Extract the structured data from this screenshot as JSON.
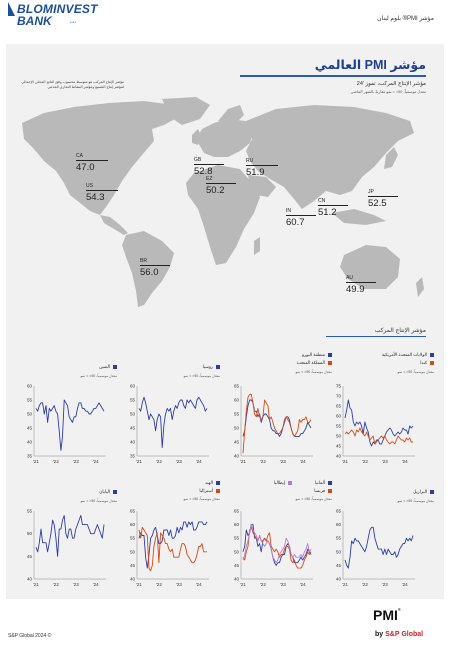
{
  "header": {
    "logo_line1": "BLOMINVEST",
    "logo_line2": "BANK",
    "logo_sal": "s.a.l.",
    "page_title": "مؤشر PMI® بلوم لبنان"
  },
  "report": {
    "title": "مؤشر PMI العالمي",
    "subtitle": "مؤشر الإنتاج المركب، تموز '24",
    "subtitle2": "معدل موسمياً، 50< = نمو مقارنةً بالشهر الماضي",
    "description": "مؤشر الإنتاج المركب هو متوسط محسوب وفق الناتج المحلي الإجمالي لمؤشر إنتاج التصنيع ومؤشر النشاط التجاري الخدمي"
  },
  "map": {
    "land_color": "#b9b9b9",
    "labels": [
      {
        "code": "CA",
        "value": "47.0"
      },
      {
        "code": "US",
        "value": "54.3"
      },
      {
        "code": "GB",
        "value": "52.8"
      },
      {
        "code": "EZ",
        "value": "50.2"
      },
      {
        "code": "RU",
        "value": "51.9"
      },
      {
        "code": "IN",
        "value": "60.7"
      },
      {
        "code": "CN",
        "value": "51.2"
      },
      {
        "code": "JP",
        "value": "52.5"
      },
      {
        "code": "BR",
        "value": "56.0"
      },
      {
        "code": "AU",
        "value": "49.9"
      }
    ]
  },
  "section_title": "مؤشر الإنتاج المركب",
  "unit_label": "معدل موسمياً، 50< = نمو",
  "colors": {
    "blue": "#2b3ea8",
    "orange": "#d94a12",
    "purple": "#b57ad6"
  },
  "chart_data": [
    {
      "type": "line",
      "ylim": [
        40,
        75
      ],
      "yticks": [
        "40",
        "45",
        "50",
        "55",
        "60",
        "65",
        "70",
        "75"
      ],
      "xticks": [
        "'21",
        "'22",
        "'23",
        "'24"
      ],
      "series": [
        {
          "name": "الولايات المتحدة الأمريكية",
          "color": "#2b3ea8",
          "values": [
            59,
            63,
            68,
            64,
            63,
            57,
            55,
            57,
            56,
            57,
            55,
            51,
            57,
            54,
            52,
            47,
            45,
            47,
            46,
            48,
            48,
            46,
            46,
            48,
            50,
            52,
            53,
            54,
            53,
            51,
            50,
            51,
            52,
            51,
            52,
            54,
            53,
            53,
            51,
            55,
            54,
            55
          ]
        },
        {
          "name": "كندا",
          "color": "#d94a12",
          "values": [
            51,
            52,
            51,
            52,
            53,
            52,
            50,
            53,
            52,
            54,
            52,
            51,
            50,
            52,
            50,
            48,
            49,
            50,
            46,
            47,
            48,
            49,
            50,
            49,
            50,
            48,
            47,
            46,
            47,
            47,
            46,
            48,
            50,
            49,
            48,
            48,
            47,
            49,
            48,
            49,
            47,
            47
          ]
        }
      ]
    },
    {
      "type": "line",
      "ylim": [
        40,
        65
      ],
      "yticks": [
        "40",
        "45",
        "50",
        "55",
        "60",
        "65"
      ],
      "xticks": [
        "'21",
        "'22",
        "'23",
        "'24"
      ],
      "series": [
        {
          "name": "منطقة اليورو",
          "color": "#2b3ea8",
          "values": [
            47,
            49,
            54,
            58,
            60,
            60,
            59,
            56,
            56,
            54,
            55,
            52,
            54,
            55,
            55,
            54,
            53,
            50,
            49,
            49,
            48,
            48,
            47,
            48,
            50,
            52,
            54,
            54,
            53,
            50,
            48,
            47,
            47,
            47,
            47,
            48,
            48,
            49,
            50,
            52,
            51,
            50
          ]
        },
        {
          "name": "المملكة المتحدة",
          "color": "#d94a12",
          "values": [
            41,
            49,
            56,
            61,
            62,
            62,
            59,
            55,
            54,
            57,
            54,
            53,
            54,
            60,
            59,
            58,
            53,
            54,
            52,
            50,
            49,
            48,
            48,
            49,
            50,
            53,
            54,
            53,
            52,
            50,
            48,
            47,
            48,
            49,
            53,
            52,
            53,
            53,
            54,
            52,
            52,
            53
          ]
        }
      ]
    },
    {
      "type": "line",
      "ylim": [
        35,
        60
      ],
      "yticks": [
        "35",
        "40",
        "45",
        "50",
        "55",
        "60"
      ],
      "xticks": [
        "'21",
        "'22",
        "'23",
        "'24"
      ],
      "series": [
        {
          "name": "روسيا",
          "color": "#2b3ea8",
          "values": [
            52,
            51,
            54,
            56,
            54,
            51,
            48,
            50,
            49,
            48,
            44,
            48,
            50,
            49,
            38,
            46,
            50,
            52,
            51,
            52,
            48,
            51,
            53,
            52,
            54,
            55,
            55,
            53,
            52,
            55,
            54,
            55,
            54,
            53,
            52,
            55,
            56,
            55,
            54,
            53,
            51,
            52
          ]
        }
      ]
    },
    {
      "type": "line",
      "ylim": [
        35,
        60
      ],
      "yticks": [
        "35",
        "40",
        "45",
        "50",
        "55",
        "60"
      ],
      "xticks": [
        "'21",
        "'22",
        "'23",
        "'24"
      ],
      "series": [
        {
          "name": "الصين",
          "color": "#2b3ea8",
          "values": [
            52,
            51,
            53,
            54,
            54,
            50,
            53,
            47,
            52,
            51,
            52,
            53,
            51,
            50,
            44,
            37,
            42,
            55,
            54,
            53,
            49,
            48,
            47,
            49,
            49,
            52,
            54,
            54,
            52,
            52,
            51,
            51,
            50,
            50,
            51,
            52,
            52,
            53,
            54,
            53,
            52,
            51
          ]
        }
      ]
    },
    {
      "type": "line",
      "ylim": [
        40,
        65
      ],
      "yticks": [
        "40",
        "45",
        "50",
        "55",
        "60",
        "65"
      ],
      "xticks": [
        "'21",
        "'22",
        "'23",
        "'24"
      ],
      "series": [
        {
          "name": "البرازيل",
          "color": "#2b3ea8",
          "values": [
            47,
            45,
            44,
            48,
            54,
            53,
            55,
            54,
            54,
            53,
            52,
            51,
            50,
            52,
            55,
            58,
            59,
            59,
            55,
            53,
            51,
            51,
            51,
            49,
            51,
            49,
            51,
            50,
            49,
            49,
            50,
            48,
            49,
            51,
            52,
            53,
            53,
            55,
            54,
            55,
            54,
            56
          ]
        }
      ]
    },
    {
      "type": "line",
      "ylim": [
        40,
        65
      ],
      "yticks": [
        "40",
        "45",
        "50",
        "55",
        "60",
        "65"
      ],
      "xticks": [
        "'21",
        "'22",
        "'23",
        "'24"
      ],
      "series": [
        {
          "name": "ألمانيا",
          "color": "#2b3ea8",
          "values": [
            50,
            52,
            58,
            56,
            57,
            60,
            60,
            55,
            55,
            52,
            53,
            50,
            54,
            55,
            54,
            54,
            53,
            51,
            48,
            46,
            45,
            46,
            46,
            48,
            49,
            49,
            52,
            53,
            52,
            49,
            48,
            46,
            46,
            46,
            47,
            48,
            47,
            48,
            49,
            51,
            50,
            49
          ]
        },
        {
          "name": "فرنسا",
          "color": "#d94a12",
          "values": [
            48,
            47,
            50,
            52,
            58,
            59,
            57,
            56,
            55,
            54,
            56,
            54,
            54,
            55,
            54,
            56,
            57,
            52,
            51,
            50,
            51,
            50,
            48,
            49,
            49,
            51,
            52,
            52,
            51,
            47,
            46,
            47,
            45,
            44,
            44,
            44,
            45,
            47,
            48,
            50,
            49,
            50
          ]
        },
        {
          "name": "إيطاليا",
          "color": "#b57ad6",
          "values": [
            47,
            49,
            52,
            54,
            57,
            60,
            58,
            57,
            56,
            54,
            56,
            54,
            53,
            52,
            53,
            54,
            53,
            51,
            48,
            47,
            46,
            47,
            49,
            50,
            51,
            52,
            55,
            54,
            52,
            49,
            48,
            49,
            48,
            48,
            48,
            49,
            48,
            50,
            51,
            53,
            50,
            51
          ]
        }
      ]
    },
    {
      "type": "line",
      "ylim": [
        40,
        65
      ],
      "yticks": [
        "40",
        "45",
        "50",
        "55",
        "60",
        "65"
      ],
      "xticks": [
        "'21",
        "'22",
        "'23",
        "'24"
      ],
      "series": [
        {
          "name": "الهند",
          "color": "#2b3ea8",
          "values": [
            55,
            57,
            56,
            56,
            48,
            44,
            49,
            55,
            56,
            58,
            59,
            56,
            53,
            53,
            54,
            58,
            58,
            58,
            56,
            58,
            55,
            55,
            56,
            59,
            57,
            59,
            58,
            61,
            61,
            59,
            61,
            60,
            61,
            58,
            58,
            59,
            61,
            61,
            61,
            60,
            60,
            61
          ]
        },
        {
          "name": "أستراليا",
          "color": "#d94a12",
          "values": [
            58,
            55,
            59,
            58,
            57,
            56,
            44,
            43,
            45,
            52,
            55,
            57,
            46,
            57,
            56,
            55,
            53,
            53,
            51,
            50,
            51,
            48,
            48,
            48,
            48,
            51,
            53,
            53,
            52,
            49,
            48,
            47,
            46,
            46,
            47,
            49,
            52,
            52,
            53,
            50,
            50,
            50
          ]
        }
      ]
    },
    {
      "type": "line",
      "ylim": [
        40,
        55
      ],
      "yticks": [
        "40",
        "45",
        "50",
        "55"
      ],
      "xticks": [
        "'21",
        "'22",
        "'23",
        "'24"
      ],
      "series": [
        {
          "name": "اليابان",
          "color": "#2b3ea8",
          "values": [
            47,
            46,
            48,
            51,
            48,
            48,
            48,
            46,
            48,
            50,
            53,
            52,
            49,
            45,
            51,
            51,
            53,
            54,
            50,
            49,
            51,
            51,
            49,
            49,
            51,
            52,
            53,
            54,
            52,
            52,
            52,
            52,
            51,
            50,
            50,
            50,
            51,
            52,
            51,
            50,
            49,
            52
          ]
        }
      ]
    }
  ]
}
